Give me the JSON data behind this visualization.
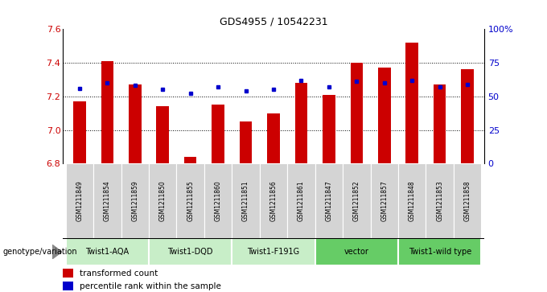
{
  "title": "GDS4955 / 10542231",
  "samples": [
    "GSM1211849",
    "GSM1211854",
    "GSM1211859",
    "GSM1211850",
    "GSM1211855",
    "GSM1211860",
    "GSM1211851",
    "GSM1211856",
    "GSM1211861",
    "GSM1211847",
    "GSM1211852",
    "GSM1211857",
    "GSM1211848",
    "GSM1211853",
    "GSM1211858"
  ],
  "bar_values": [
    7.17,
    7.41,
    7.27,
    7.14,
    6.84,
    7.15,
    7.05,
    7.1,
    7.28,
    7.21,
    7.4,
    7.37,
    7.52,
    7.27,
    7.36
  ],
  "dot_values": [
    56,
    60,
    58,
    55,
    52,
    57,
    54,
    55,
    62,
    57,
    61,
    60,
    62,
    57,
    59
  ],
  "ylim_left": [
    6.8,
    7.6
  ],
  "ylim_right": [
    0,
    100
  ],
  "yticks_left": [
    6.8,
    7.0,
    7.2,
    7.4,
    7.6
  ],
  "yticks_right": [
    0,
    25,
    50,
    75,
    100
  ],
  "bar_color": "#cc0000",
  "dot_color": "#0000cc",
  "groups": [
    {
      "label": "Twist1-AQA",
      "start": 0,
      "end": 3,
      "color": "#c8eec8"
    },
    {
      "label": "Twist1-DQD",
      "start": 3,
      "end": 6,
      "color": "#c8eec8"
    },
    {
      "label": "Twist1-F191G",
      "start": 6,
      "end": 9,
      "color": "#c8eec8"
    },
    {
      "label": "vector",
      "start": 9,
      "end": 12,
      "color": "#66cc66"
    },
    {
      "label": "Twist1-wild type",
      "start": 12,
      "end": 15,
      "color": "#66cc66"
    }
  ],
  "sample_bg_color": "#d4d4d4",
  "genotype_label": "genotype/variation",
  "legend_items": [
    {
      "label": "transformed count",
      "color": "#cc0000"
    },
    {
      "label": "percentile rank within the sample",
      "color": "#0000cc"
    }
  ]
}
